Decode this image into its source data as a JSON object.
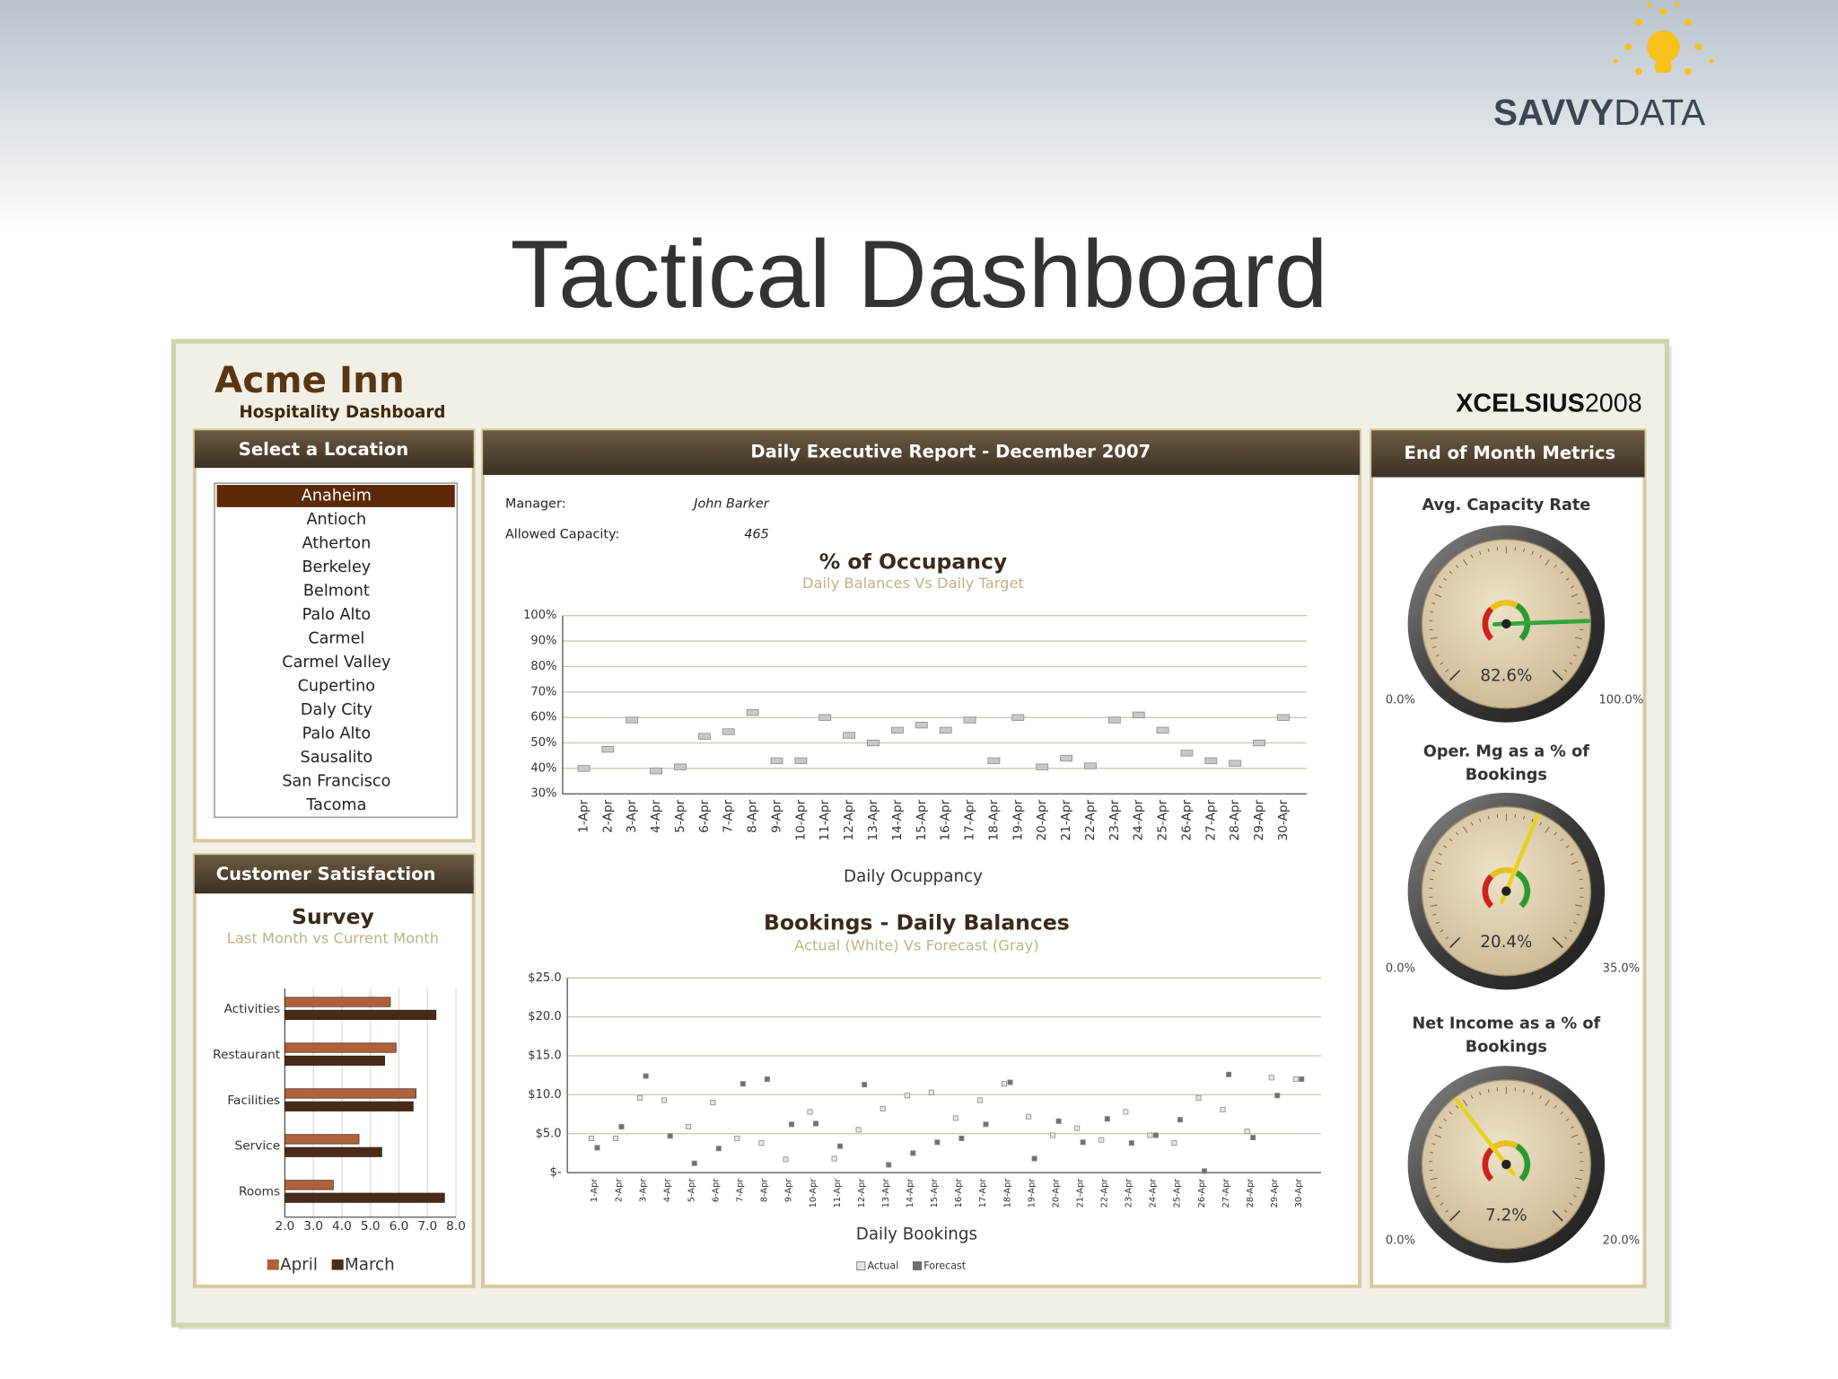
{
  "header": {
    "title": "Tactical Dashboard",
    "logo": {
      "bold": "SAVVY",
      "light": "DATA"
    }
  },
  "dashboard": {
    "title": "Acme Inn",
    "subtitle": "Hospitality Dashboard",
    "brand": "XCELSIUS",
    "brand_version": "2008",
    "location_panel": {
      "title": "Select a Location",
      "selected_index": 0,
      "locations": [
        "Anaheim",
        "Antioch",
        "Atherton",
        "Berkeley",
        "Belmont",
        "Palo Alto",
        "Carmel",
        "Carmel Valley",
        "Cupertino",
        "Daly City",
        "Palo Alto",
        "Sausalito",
        "San Francisco",
        "Tacoma"
      ]
    },
    "satisfaction_panel": {
      "title": "Customer Satisfaction"
    },
    "report_panel": {
      "title": "Daily Executive Report - December 2007",
      "manager_label": "Manager:",
      "manager": "John Barker",
      "capacity_label": "Allowed Capacity:",
      "capacity": 465
    },
    "metrics_panel": {
      "title": "End of Month Metrics"
    }
  },
  "chart_data": [
    {
      "type": "scatter",
      "title": "% of Occupancy",
      "subtitle": "Daily Balances Vs Daily Target",
      "x_label": "Daily Ocuppancy",
      "categories": [
        "1-Apr",
        "2-Apr",
        "3-Apr",
        "4-Apr",
        "5-Apr",
        "6-Apr",
        "7-Apr",
        "8-Apr",
        "9-Apr",
        "10-Apr",
        "11-Apr",
        "12-Apr",
        "13-Apr",
        "14-Apr",
        "15-Apr",
        "16-Apr",
        "17-Apr",
        "18-Apr",
        "19-Apr",
        "20-Apr",
        "21-Apr",
        "22-Apr",
        "23-Apr",
        "24-Apr",
        "25-Apr",
        "26-Apr",
        "27-Apr",
        "28-Apr",
        "29-Apr",
        "30-Apr"
      ],
      "values": [
        40,
        47.5,
        59,
        39,
        40.6,
        52.6,
        54.4,
        62,
        43,
        43,
        60,
        53,
        50,
        55,
        57,
        55,
        59,
        43,
        60,
        40.6,
        44,
        41,
        59,
        61,
        55,
        46,
        43,
        42,
        50,
        60
      ],
      "color": "#c8c8c8",
      "ylim": [
        30,
        100
      ],
      "yticks": [
        {
          "value": 30,
          "label": "30%"
        },
        {
          "value": 40,
          "label": "40%"
        },
        {
          "value": 50,
          "label": "50%"
        },
        {
          "value": 60,
          "label": "60%"
        },
        {
          "value": 70,
          "label": "70%"
        },
        {
          "value": 80,
          "label": "80%"
        },
        {
          "value": 90,
          "label": "90%"
        },
        {
          "value": 100,
          "label": "100%"
        }
      ],
      "grid": true
    },
    {
      "type": "scatter",
      "title": "Bookings - Daily Balances",
      "subtitle": "Actual (White) Vs Forecast (Gray)",
      "x_label": "Daily Bookings",
      "categories": [
        "1-Apr",
        "2-Apr",
        "3-Apr",
        "4-Apr",
        "5-Apr",
        "6-Apr",
        "7-Apr",
        "8-Apr",
        "9-Apr",
        "10-Apr",
        "11-Apr",
        "12-Apr",
        "13-Apr",
        "14-Apr",
        "15-Apr",
        "16-Apr",
        "17-Apr",
        "18-Apr",
        "19-Apr",
        "20-Apr",
        "21-Apr",
        "22-Apr",
        "23-Apr",
        "24-Apr",
        "25-Apr",
        "26-Apr",
        "27-Apr",
        "28-Apr",
        "29-Apr",
        "30-Apr"
      ],
      "series": [
        {
          "name": "Actual",
          "color": "#e6e6e6",
          "values": [
            4.4,
            4.4,
            9.6,
            9.3,
            5.9,
            9.0,
            4.4,
            3.8,
            1.7,
            7.8,
            1.8,
            5.5,
            8.2,
            9.9,
            10.3,
            7.0,
            9.3,
            11.4,
            7.2,
            4.8,
            5.7,
            4.2,
            7.8,
            4.8,
            3.8,
            9.6,
            8.1,
            5.3,
            12.2,
            12.0
          ]
        },
        {
          "name": "Forecast",
          "color": "#707070",
          "values": [
            3.2,
            5.9,
            12.4,
            4.7,
            1.2,
            3.1,
            11.4,
            12.0,
            6.2,
            6.3,
            3.4,
            11.3,
            1.0,
            2.5,
            3.9,
            4.4,
            6.2,
            11.6,
            1.8,
            6.6,
            3.9,
            6.9,
            3.8,
            4.8,
            6.8,
            0.2,
            12.6,
            4.5,
            9.9,
            12.0
          ]
        }
      ],
      "ylim": [
        0,
        25
      ],
      "yticks": [
        {
          "value": 0,
          "label": "$-"
        },
        {
          "value": 5,
          "label": "$5.0"
        },
        {
          "value": 10,
          "label": "$10.0"
        },
        {
          "value": 15,
          "label": "$15.0"
        },
        {
          "value": 20,
          "label": "$20.0"
        },
        {
          "value": 25,
          "label": "$25.0"
        }
      ],
      "grid": true
    },
    {
      "type": "bar",
      "orientation": "horizontal",
      "title": "Survey",
      "subtitle": "Last Month vs Current Month",
      "categories": [
        "Activities",
        "Restaurant",
        "Facilities",
        "Service",
        "Rooms"
      ],
      "series": [
        {
          "name": "April",
          "color": "#b0603a",
          "values": [
            5.7,
            5.9,
            6.6,
            4.6,
            3.7
          ]
        },
        {
          "name": "March",
          "color": "#4a2a18",
          "values": [
            7.3,
            5.5,
            6.5,
            5.4,
            7.6
          ]
        }
      ],
      "xlim": [
        2,
        8
      ],
      "xticks": [
        {
          "value": 2,
          "label": "2.0"
        },
        {
          "value": 3,
          "label": "3.0"
        },
        {
          "value": 4,
          "label": "4.0"
        },
        {
          "value": 5,
          "label": "5.0"
        },
        {
          "value": 6,
          "label": "6.0"
        },
        {
          "value": 7,
          "label": "7.0"
        },
        {
          "value": 8,
          "label": "8.0"
        }
      ],
      "grid": true
    },
    {
      "type": "gauge",
      "title": "Avg. Capacity Rate",
      "values": [
        82.6
      ],
      "value_labels": [
        "82.6%"
      ],
      "ylim": [
        0,
        100
      ],
      "yticks": [
        {
          "value": 0,
          "label": "0.0%"
        },
        {
          "value": 100,
          "label": "100.0%"
        }
      ],
      "color": "#2fa63a"
    },
    {
      "type": "gauge",
      "title": "Oper. Mg as a % of Bookings",
      "values": [
        20.4
      ],
      "value_labels": [
        "20.4%"
      ],
      "ylim": [
        0,
        35
      ],
      "yticks": [
        {
          "value": 0,
          "label": "0.0%"
        },
        {
          "value": 35,
          "label": "35.0%"
        }
      ],
      "color": "#e8d020"
    },
    {
      "type": "gauge",
      "title": "Net Income as a % of Bookings",
      "values": [
        7.2
      ],
      "value_labels": [
        "7.2%"
      ],
      "ylim": [
        0,
        20
      ],
      "yticks": [
        {
          "value": 0,
          "label": "0.0%"
        },
        {
          "value": 20,
          "label": "20.0%"
        }
      ],
      "color": "#e8d020"
    }
  ]
}
